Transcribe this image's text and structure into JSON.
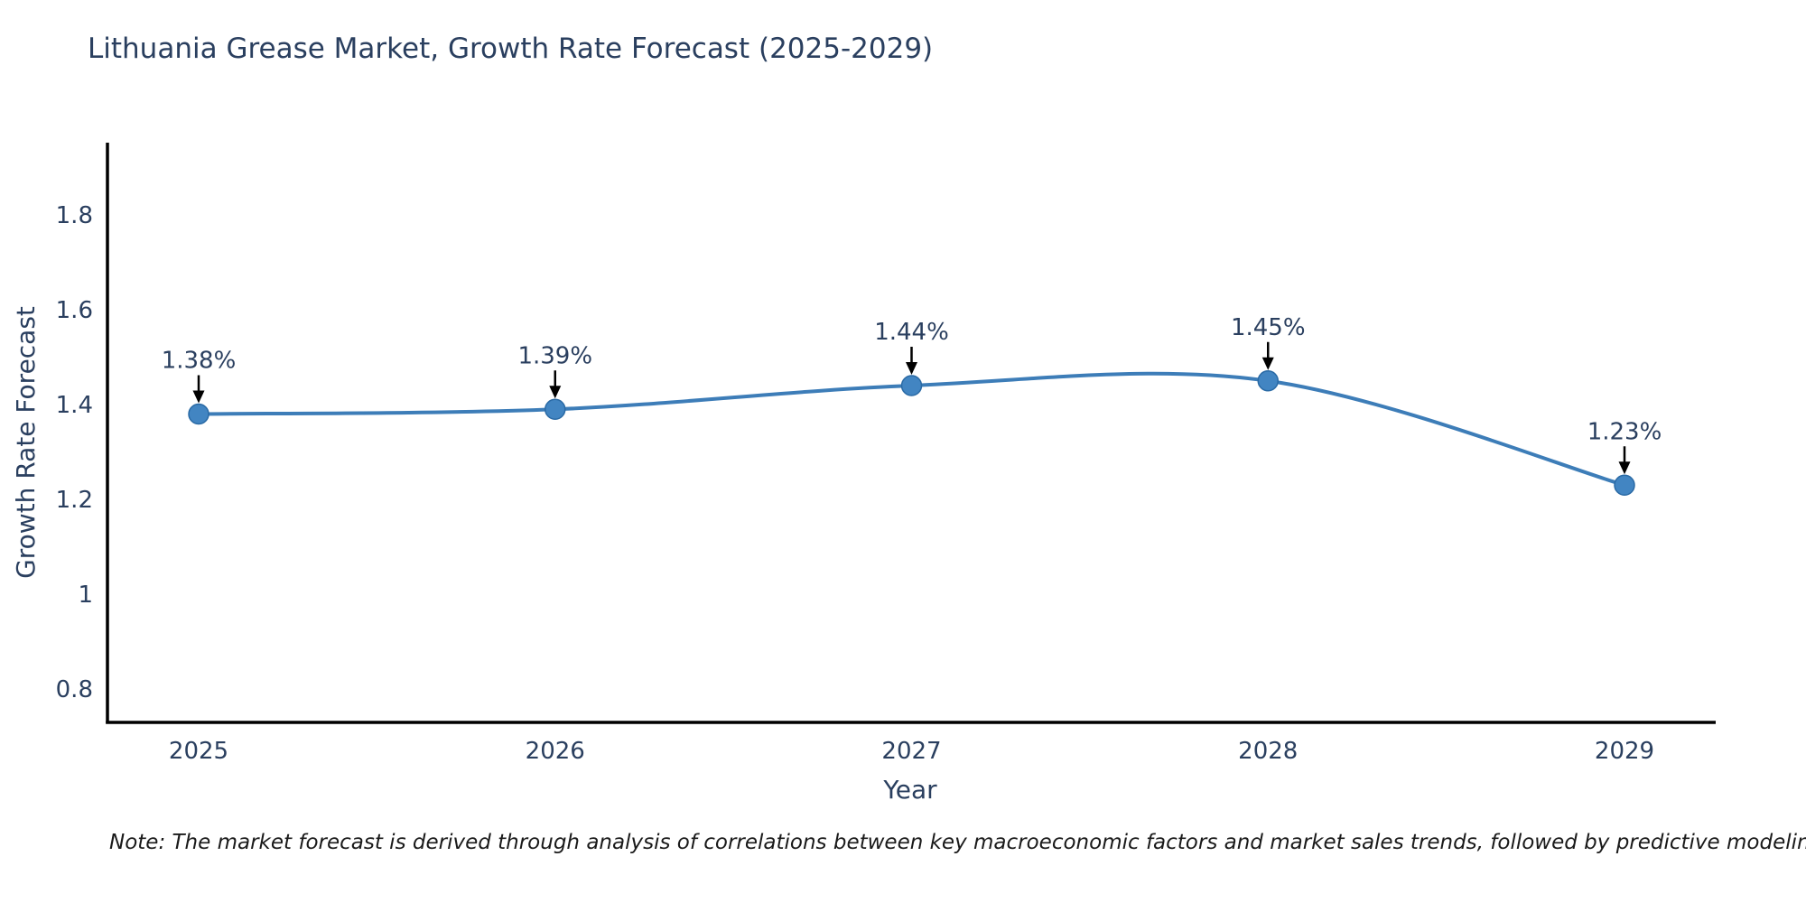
{
  "header": {
    "title": "Lithuania Grease Market, Growth Rate Forecast (2025-2029)"
  },
  "chart_data": {
    "type": "line",
    "title": "Lithuania Grease Market, Growth Rate Forecast (2025-2029)",
    "xlabel": "Year",
    "ylabel": "Growth Rate Forecast",
    "x": [
      2025,
      2026,
      2027,
      2028,
      2029
    ],
    "values": [
      1.38,
      1.39,
      1.44,
      1.45,
      1.23
    ],
    "point_labels": [
      "1.38%",
      "1.39%",
      "1.44%",
      "1.45%",
      "1.23%"
    ],
    "yticks": [
      0.8,
      1.0,
      1.2,
      1.4,
      1.6,
      1.8
    ],
    "ytick_labels": [
      "0.8",
      "1",
      "1.2",
      "1.4",
      "1.6",
      "1.8"
    ],
    "xtick_labels": [
      "2025",
      "2026",
      "2027",
      "2028",
      "2029"
    ],
    "ylim": [
      0.73,
      1.95
    ],
    "xlim": [
      2024.74,
      2029.26
    ],
    "grid": false,
    "legend": "none",
    "line_shape": "spline",
    "line_color": "#3d7db8",
    "marker_color": "#4285c2",
    "marker_edge_color": "#2a6aa5",
    "arrow_color": "#000000",
    "axis_line_color": "#000000",
    "text_color": "#2a3f5f"
  },
  "note": {
    "text": "Note: The market forecast is derived through analysis of correlations between key macroeconomic factors and market sales trends, followed by predictive modeling to project future sales"
  }
}
